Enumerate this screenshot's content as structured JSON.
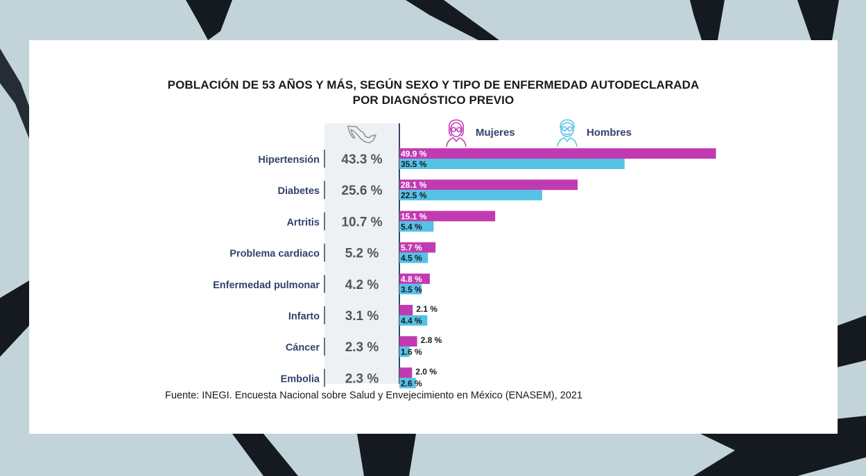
{
  "chart_data": {
    "type": "bar",
    "title": "Población de 53 años y más, según sexo y tipo de enfermedad autodeclarada por diagnóstico previo",
    "title_lines": [
      "POBLACIÓN DE 53 AÑOS Y MÁS, SEGÚN SEXO Y TIPO DE ENFERMEDAD AUTODECLARADA",
      "POR DIAGNÓSTICO PREVIO"
    ],
    "orientation": "horizontal",
    "categories": [
      "Hipertensión",
      "Diabetes",
      "Artritis",
      "Problema cardiaco",
      "Enfermedad pulmonar",
      "Infarto",
      "Cáncer",
      "Embolia"
    ],
    "total": {
      "values": [
        43.3,
        25.6,
        10.7,
        5.2,
        4.2,
        3.1,
        2.3,
        2.3
      ],
      "labels": [
        "43.3 %",
        "25.6 %",
        "10.7 %",
        "5.2 %",
        "4.2 %",
        "3.1 %",
        "2.3 %",
        "2.3 %"
      ]
    },
    "series": [
      {
        "name": "Mujeres",
        "color": "#c03bb1",
        "values": [
          49.9,
          28.1,
          15.1,
          5.7,
          4.8,
          2.1,
          2.8,
          2.0
        ],
        "labels": [
          "49.9 %",
          "28.1 %",
          "15.1 %",
          "5.7 %",
          "4.8 %",
          "2.1 %",
          "2.8 %",
          "2.0 %"
        ]
      },
      {
        "name": "Hombres",
        "color": "#55c2e6",
        "values": [
          35.5,
          22.5,
          5.4,
          4.5,
          3.5,
          4.4,
          1.6,
          2.6
        ],
        "labels": [
          "35.5 %",
          "22.5 %",
          "5.4 %",
          "4.5 %",
          "3.5 %",
          "4.4 %",
          "1.6 %",
          "2.6 %"
        ]
      }
    ],
    "xlim": [
      0,
      50
    ],
    "legend_position": "top",
    "grid": false
  },
  "legend": {
    "mujeres_label": "Mujeres",
    "hombres_label": "Hombres",
    "mujeres_icon": "woman-icon",
    "hombres_icon": "man-icon",
    "total_icon": "mexico-map-icon"
  },
  "source": "Fuente: INEGI. Encuesta Nacional sobre Salud y Envejecimiento en México (ENASEM), 2021",
  "colors": {
    "background": "#c3d3da",
    "label_text": "#34426b",
    "total_text": "#555555"
  }
}
